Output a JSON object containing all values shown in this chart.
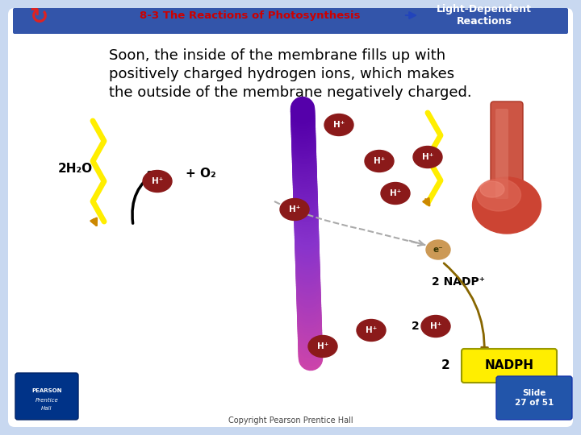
{
  "bg_color": "#c8d8f0",
  "slide_bg_color": "#ffffff",
  "header_title": "8-3 The Reactions of Photosynthesis",
  "header_title_color": "#cc0000",
  "header_right": "Light-Dependent\nReactions",
  "header_right_color": "#000099",
  "main_text": "Soon, the inside of the membrane fills up with\npositively charged hydrogen ions, which makes\nthe outside of the membrane negatively charged.",
  "main_text_color": "#000000",
  "footer_text": "Copyright Pearson Prentice Hall",
  "footer_slide": "Slide\n27 of 51",
  "nadph_box_color": "#ffee00",
  "nadph_text": "NADPH",
  "h_plus_color": "#8B1A1A",
  "h_plus_text_color": "#ffffff",
  "zigzag_yellow": "#ffee00",
  "zigzag_orange": "#cc8800",
  "electron_color": "#cc9966",
  "purple_arrow_top": "#5500aa",
  "purple_arrow_bot": "#cc44aa",
  "mushroom_color": "#cc4444",
  "pearson_bg": "#003388"
}
